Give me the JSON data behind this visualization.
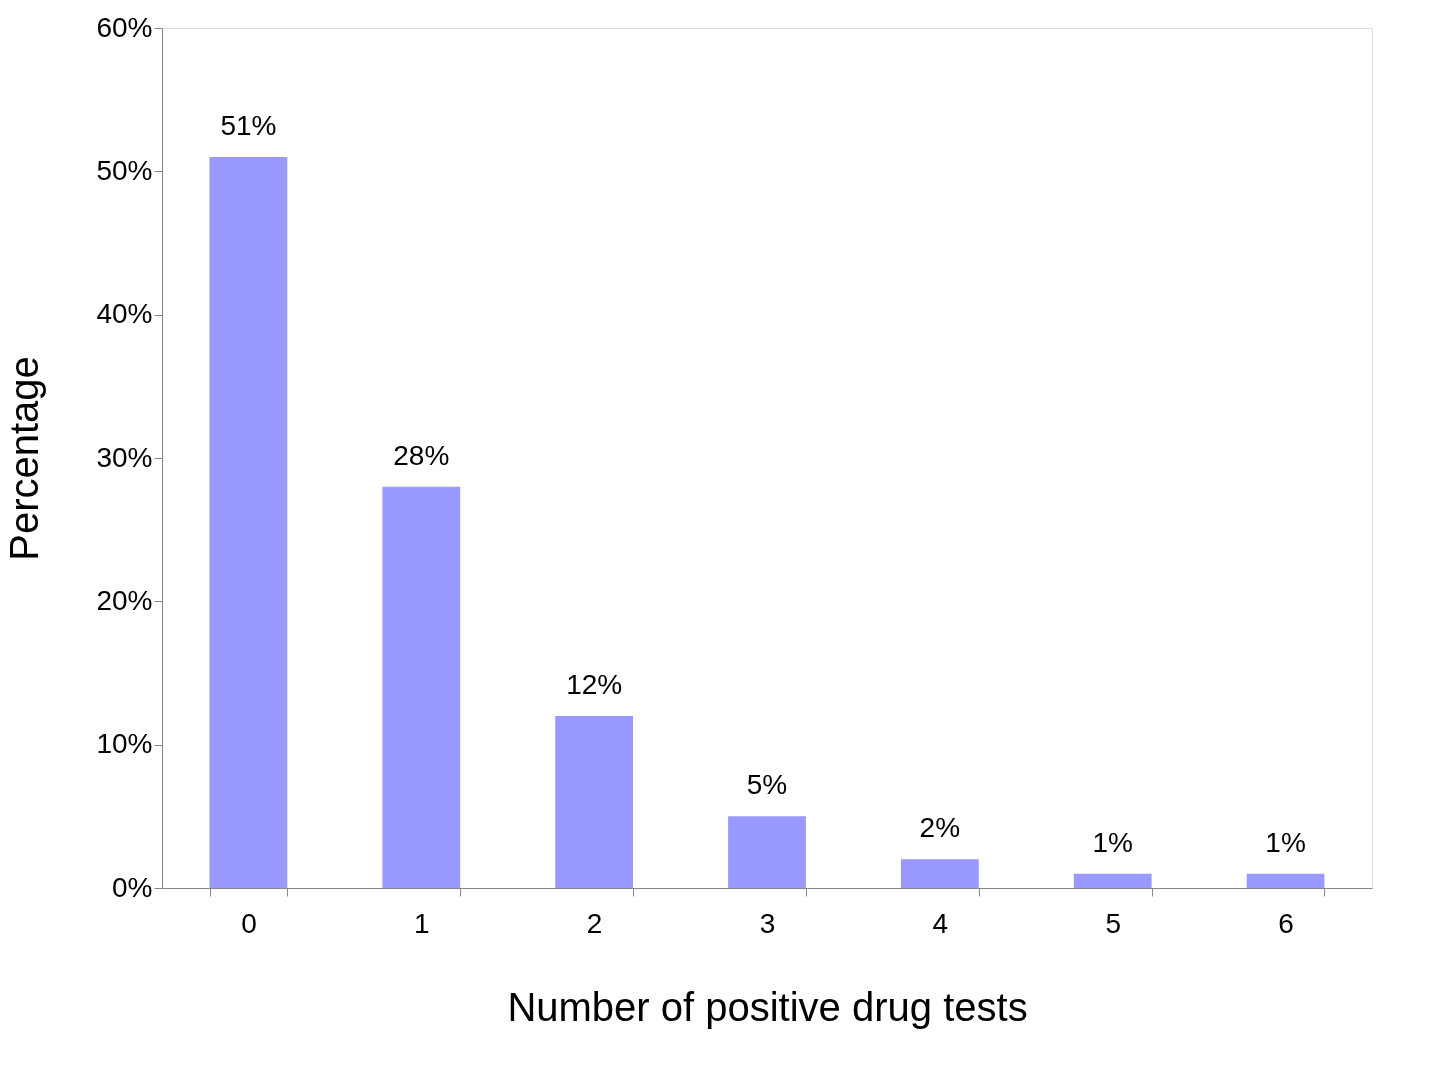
{
  "chart_data": {
    "type": "bar",
    "xlabel": "Number of positive drug tests",
    "ylabel": "Percentage",
    "categories": [
      "0",
      "1",
      "2",
      "3",
      "4",
      "5",
      "6"
    ],
    "values": [
      51,
      28,
      12,
      5,
      2,
      1,
      1
    ],
    "color": "#9999ff",
    "value_labels": [
      "51%",
      "28%",
      "12%",
      "5%",
      "2%",
      "1%",
      "1%"
    ],
    "ylim": [
      0,
      60
    ],
    "yticks": [
      {
        "value": 0,
        "label": "0%"
      },
      {
        "value": 10,
        "label": "10%"
      },
      {
        "value": 20,
        "label": "20%"
      },
      {
        "value": 30,
        "label": "30%"
      },
      {
        "value": 40,
        "label": "40%"
      },
      {
        "value": 50,
        "label": "50%"
      },
      {
        "value": 60,
        "label": "60%"
      }
    ],
    "grid": false
  }
}
